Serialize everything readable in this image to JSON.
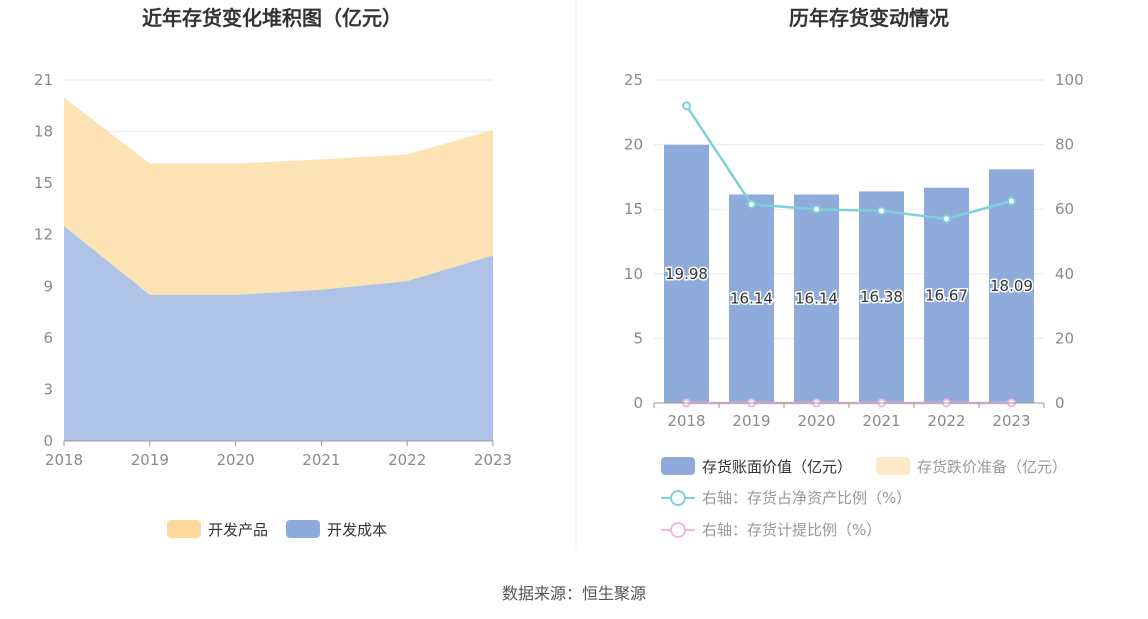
{
  "source": "数据来源：恒生聚源",
  "colors": {
    "product": "#fde3b4",
    "product_legend": "#ffd99a",
    "cost": "#aec3e5",
    "cost_legend": "#8eabdb",
    "bar": "#8eabdb",
    "impairment": "#fde8c8",
    "ratio_line": "#7fd0d8",
    "provision_line": "#f0b6dd",
    "grid": "#e6e9f5",
    "axis": "#999999"
  },
  "chart_data": [
    {
      "type": "area",
      "stacked": true,
      "title": "近年存货变化堆积图（亿元）",
      "categories": [
        "2018",
        "2019",
        "2020",
        "2021",
        "2022",
        "2023"
      ],
      "ylim": [
        0,
        21
      ],
      "yticks": [
        0,
        3,
        6,
        9,
        12,
        15,
        18,
        21
      ],
      "grid": true,
      "legend_position": "bottom",
      "series": [
        {
          "name": "开发成本",
          "values": [
            12.5,
            8.5,
            8.5,
            8.8,
            9.3,
            10.8
          ]
        },
        {
          "name": "开发产品",
          "values": [
            7.48,
            7.64,
            7.64,
            7.58,
            7.37,
            7.29
          ]
        }
      ]
    },
    {
      "type": "bar",
      "title": "历年存货变动情况",
      "categories": [
        "2018",
        "2019",
        "2020",
        "2021",
        "2022",
        "2023"
      ],
      "ylim": [
        0,
        25
      ],
      "yticks": [
        0,
        5,
        10,
        15,
        20,
        25
      ],
      "y2lim": [
        0,
        100
      ],
      "y2ticks": [
        0,
        20,
        40,
        60,
        80,
        100
      ],
      "grid": true,
      "legend_position": "bottom",
      "series": [
        {
          "name": "存货账面价值（亿元）",
          "axis": "left",
          "values": [
            19.98,
            16.14,
            16.14,
            16.38,
            16.67,
            18.09
          ],
          "labels": [
            "19.98",
            "16.14",
            "16.14",
            "16.38",
            "16.67",
            "18.09"
          ]
        },
        {
          "name": "存货跌价准备（亿元）",
          "axis": "left",
          "values": [
            0,
            0,
            0,
            0,
            0,
            0
          ]
        },
        {
          "name": "右轴：存货占净资产比例（%）",
          "axis": "right",
          "type": "line",
          "values": [
            92,
            61.5,
            60,
            59.5,
            57,
            62.5
          ]
        },
        {
          "name": "右轴：存货计提比例（%）",
          "axis": "right",
          "type": "line",
          "values": [
            0,
            0,
            0,
            0,
            0,
            0
          ]
        }
      ]
    }
  ]
}
